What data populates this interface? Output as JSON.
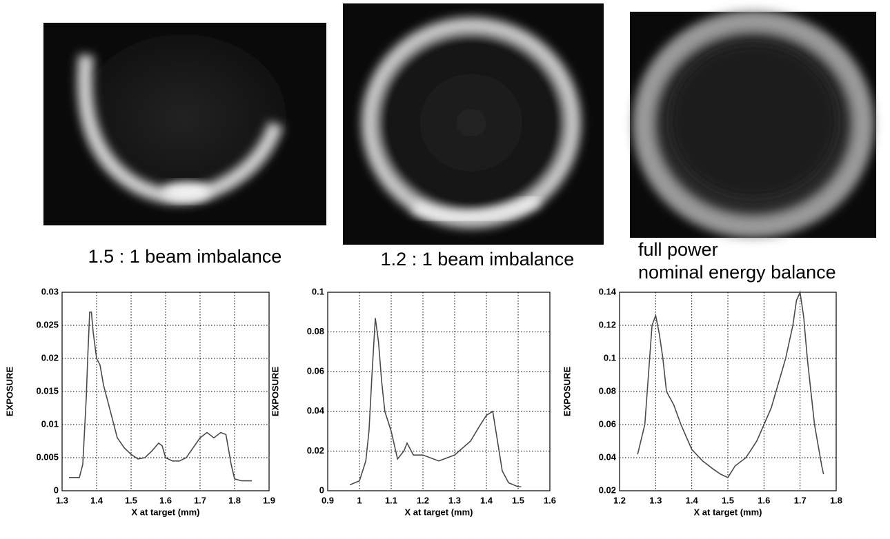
{
  "chart_data": [
    {
      "type": "line",
      "title": "1.5 : 1 beam imbalance",
      "x_label": "X at target (mm)",
      "y_label": "EXPOSURE",
      "xlim": [
        1.3,
        1.9
      ],
      "xticks": [
        1.3,
        1.4,
        1.5,
        1.6,
        1.7,
        1.8,
        1.9
      ],
      "ylim": [
        0,
        0.03
      ],
      "yticks": [
        0,
        0.005,
        0.01,
        0.015,
        0.02,
        0.025,
        0.03
      ],
      "grid": true,
      "series": [
        {
          "color": "#4a4a4a",
          "x": [
            1.32,
            1.35,
            1.36,
            1.37,
            1.375,
            1.38,
            1.385,
            1.39,
            1.4,
            1.41,
            1.42,
            1.44,
            1.46,
            1.48,
            1.5,
            1.52,
            1.54,
            1.56,
            1.58,
            1.59,
            1.6,
            1.62,
            1.64,
            1.66,
            1.68,
            1.7,
            1.72,
            1.74,
            1.76,
            1.775,
            1.79,
            1.8,
            1.82,
            1.85
          ],
          "values": [
            0.002,
            0.002,
            0.004,
            0.014,
            0.021,
            0.027,
            0.027,
            0.024,
            0.02,
            0.019,
            0.016,
            0.012,
            0.008,
            0.0065,
            0.0055,
            0.0048,
            0.005,
            0.006,
            0.0072,
            0.0068,
            0.005,
            0.0045,
            0.0045,
            0.005,
            0.0065,
            0.008,
            0.0088,
            0.008,
            0.0088,
            0.0085,
            0.004,
            0.0018,
            0.0015,
            0.0015
          ]
        }
      ]
    },
    {
      "type": "line",
      "title": "1.2 : 1 beam imbalance",
      "x_label": "X at target (mm)",
      "y_label": "EXPOSURE",
      "xlim": [
        0.9,
        1.6
      ],
      "xticks": [
        0.9,
        1,
        1.1,
        1.2,
        1.3,
        1.4,
        1.5,
        1.6
      ],
      "ylim": [
        0,
        0.1
      ],
      "yticks": [
        0,
        0.02,
        0.04,
        0.06,
        0.08,
        0.1
      ],
      "grid": true,
      "series": [
        {
          "color": "#4a4a4a",
          "x": [
            0.97,
            1.0,
            1.02,
            1.03,
            1.04,
            1.05,
            1.06,
            1.07,
            1.08,
            1.1,
            1.12,
            1.14,
            1.15,
            1.17,
            1.2,
            1.25,
            1.3,
            1.35,
            1.38,
            1.4,
            1.42,
            1.43,
            1.45,
            1.47,
            1.5,
            1.51
          ],
          "values": [
            0.003,
            0.005,
            0.015,
            0.03,
            0.06,
            0.087,
            0.075,
            0.055,
            0.04,
            0.03,
            0.016,
            0.02,
            0.024,
            0.018,
            0.018,
            0.015,
            0.018,
            0.025,
            0.033,
            0.038,
            0.04,
            0.03,
            0.01,
            0.004,
            0.002,
            0.002
          ]
        }
      ]
    },
    {
      "type": "line",
      "title": "full power",
      "subtitle": "nominal energy balance",
      "x_label": "X at target (mm)",
      "y_label": "EXPOSURE",
      "xlim": [
        1.2,
        1.8
      ],
      "xticks": [
        1.2,
        1.3,
        1.4,
        1.5,
        1.6,
        1.7,
        1.8
      ],
      "ylim": [
        0.02,
        0.14
      ],
      "yticks": [
        0.02,
        0.04,
        0.06,
        0.08,
        0.1,
        0.12,
        0.14
      ],
      "grid": true,
      "series": [
        {
          "color": "#4a4a4a",
          "x": [
            1.25,
            1.27,
            1.28,
            1.29,
            1.3,
            1.31,
            1.32,
            1.33,
            1.35,
            1.37,
            1.4,
            1.43,
            1.46,
            1.48,
            1.5,
            1.52,
            1.55,
            1.58,
            1.6,
            1.62,
            1.64,
            1.66,
            1.68,
            1.69,
            1.7,
            1.71,
            1.72,
            1.74,
            1.76,
            1.765
          ],
          "values": [
            0.042,
            0.06,
            0.09,
            0.12,
            0.126,
            0.115,
            0.1,
            0.08,
            0.072,
            0.06,
            0.045,
            0.038,
            0.033,
            0.03,
            0.028,
            0.035,
            0.04,
            0.05,
            0.06,
            0.07,
            0.085,
            0.1,
            0.12,
            0.135,
            0.14,
            0.125,
            0.1,
            0.06,
            0.035,
            0.03
          ]
        }
      ]
    }
  ]
}
